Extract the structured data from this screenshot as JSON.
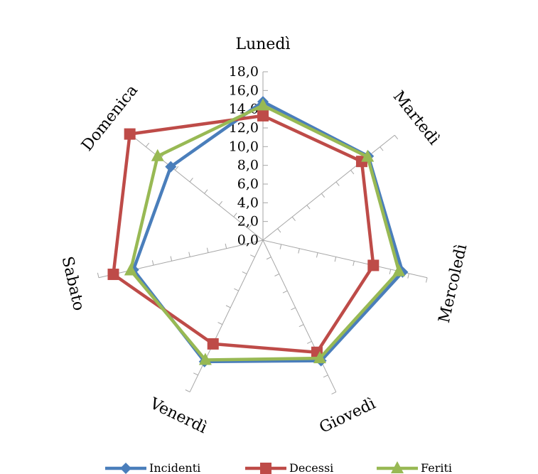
{
  "chart_data": {
    "type": "radar",
    "categories": [
      "Lunedì",
      "Martedì",
      "Mercoledì",
      "Giovedì",
      "Venerdì",
      "Sabato",
      "Domenica"
    ],
    "series": [
      {
        "name": "Incidenti",
        "color": "#4a7ebb",
        "marker": "diamond",
        "values": [
          14.8,
          14.4,
          15.3,
          14.3,
          14.4,
          14.2,
          12.6
        ]
      },
      {
        "name": "Decessi",
        "color": "#be4b48",
        "marker": "square",
        "values": [
          13.3,
          13.5,
          12.1,
          13.3,
          12.3,
          16.4,
          18.2
        ]
      },
      {
        "name": "Feriti",
        "color": "#98b954",
        "marker": "triangle",
        "values": [
          14.4,
          14.3,
          14.9,
          14.0,
          14.2,
          14.5,
          14.4
        ]
      }
    ],
    "rlim": [
      0,
      18
    ],
    "tick_step": 2,
    "tick_labels": [
      "0,0",
      "2,0",
      "4,0",
      "6,0",
      "8,0",
      "10,0",
      "12,0",
      "14,0",
      "16,0",
      "18,0"
    ],
    "grid": false,
    "legend_position": "bottom"
  }
}
